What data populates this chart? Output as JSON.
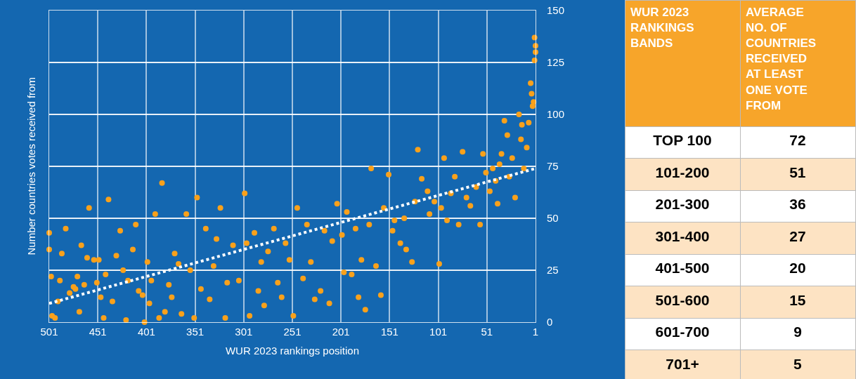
{
  "chart_data": [
    {
      "type": "scatter",
      "xlabel": "WUR 2023 rankings position",
      "ylabel": "Number countries votes received from",
      "xlim": [
        501,
        1
      ],
      "ylim": [
        0,
        150
      ],
      "xticks": [
        501,
        451,
        401,
        351,
        301,
        251,
        201,
        151,
        101,
        51,
        1
      ],
      "yticks": [
        0,
        25,
        50,
        75,
        100,
        125,
        150
      ],
      "grid": true,
      "marker": "circle",
      "tick_labels": "xy",
      "series": [
        {
          "color": "#f9a11b",
          "type": "scatter",
          "x": [
            501,
            501,
            499,
            498,
            495,
            492,
            490,
            488,
            484,
            480,
            476,
            474,
            472,
            470,
            468,
            465,
            462,
            460,
            455,
            452,
            450,
            448,
            445,
            443,
            440,
            436,
            432,
            428,
            425,
            422,
            420,
            415,
            412,
            409,
            405,
            403,
            400,
            398,
            396,
            392,
            388,
            385,
            382,
            378,
            375,
            372,
            368,
            365,
            360,
            356,
            352,
            349,
            345,
            340,
            336,
            332,
            329,
            325,
            320,
            318,
            312,
            306,
            300,
            298,
            295,
            290,
            286,
            283,
            280,
            276,
            270,
            266,
            262,
            258,
            254,
            250,
            246,
            240,
            236,
            232,
            228,
            222,
            218,
            213,
            210,
            205,
            200,
            198,
            195,
            190,
            186,
            183,
            180,
            176,
            172,
            170,
            165,
            160,
            157,
            152,
            148,
            146,
            140,
            136,
            134,
            128,
            125,
            122,
            118,
            112,
            110,
            105,
            100,
            98,
            95,
            92,
            88,
            84,
            80,
            76,
            72,
            68,
            62,
            58,
            55,
            52,
            48,
            45,
            42,
            40,
            38,
            36,
            33,
            30,
            28,
            25,
            22,
            18,
            16,
            15,
            13,
            10,
            8,
            6,
            5,
            4,
            3,
            2,
            1,
            1,
            2
          ],
          "values": [
            43,
            35,
            22,
            3,
            2,
            10,
            20,
            33,
            45,
            14,
            17,
            16,
            22,
            5,
            37,
            18,
            31,
            55,
            30,
            19,
            30,
            12,
            2,
            23,
            59,
            10,
            32,
            44,
            25,
            1,
            20,
            35,
            47,
            15,
            13,
            0,
            29,
            9,
            20,
            52,
            2,
            67,
            5,
            18,
            12,
            33,
            28,
            4,
            52,
            25,
            2,
            60,
            16,
            45,
            11,
            27,
            40,
            55,
            2,
            19,
            37,
            20,
            62,
            38,
            3,
            43,
            15,
            29,
            8,
            34,
            45,
            19,
            12,
            38,
            30,
            3,
            55,
            21,
            47,
            29,
            11,
            15,
            44,
            9,
            39,
            57,
            42,
            24,
            53,
            23,
            45,
            12,
            30,
            6,
            47,
            74,
            27,
            13,
            55,
            71,
            44,
            49,
            38,
            50,
            35,
            29,
            58,
            83,
            69,
            63,
            52,
            58,
            28,
            55,
            79,
            49,
            62,
            70,
            47,
            82,
            60,
            56,
            65,
            47,
            81,
            72,
            63,
            74,
            68,
            57,
            76,
            81,
            97,
            90,
            70,
            79,
            60,
            100,
            88,
            95,
            74,
            84,
            96,
            115,
            110,
            104,
            106,
            126,
            130,
            133,
            137
          ]
        },
        {
          "color": "#ffffff",
          "type": "line",
          "line_style": "dotted",
          "marker": "none",
          "x": [
            501,
            1
          ],
          "values": [
            9,
            74
          ]
        }
      ]
    },
    {
      "type": "other",
      "annotations": [
        "WUR 2023 RANKINGS BANDS",
        "AVERAGE NO. OF COUNTRIES RECEIVED AT LEAST ONE VOTE FROM"
      ],
      "categories": [
        "TOP 100",
        "101-200",
        "201-300",
        "301-400",
        "401-500",
        "501-600",
        "601-700",
        "701+"
      ],
      "values": [
        72,
        51,
        36,
        27,
        20,
        15,
        9,
        5
      ],
      "data_labels": true,
      "color": "#f7a52a",
      "colors": [
        "#ffffff",
        "#fde3c3",
        "#ffffff",
        "#fde3c3",
        "#ffffff",
        "#fde3c3",
        "#ffffff",
        "#fde3c3"
      ]
    }
  ]
}
